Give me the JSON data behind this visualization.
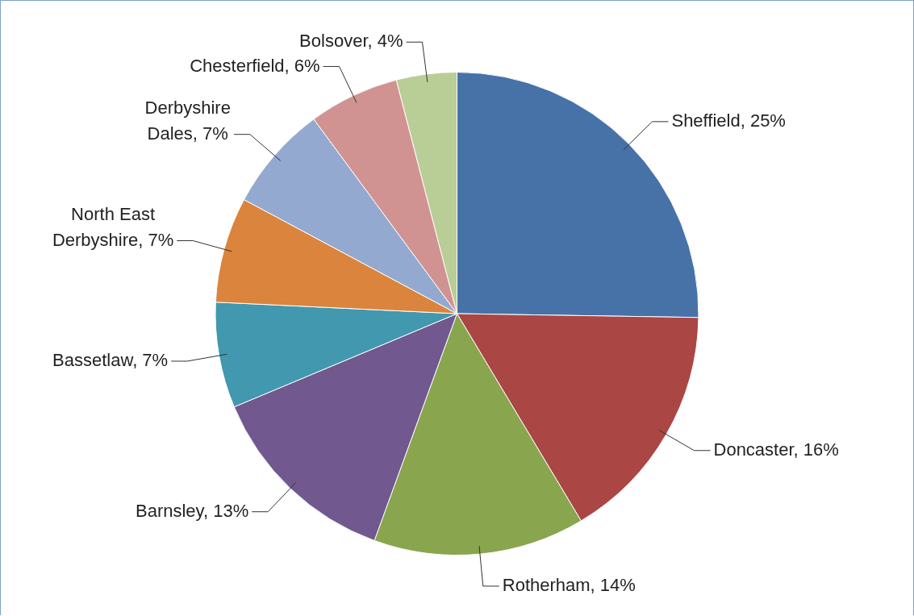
{
  "chart_data": {
    "type": "pie",
    "categories": [
      "Sheffield",
      "Doncaster",
      "Rotherham",
      "Barnsley",
      "Bassetlaw",
      "North East Derbyshire",
      "Derbyshire Dales",
      "Chesterfield",
      "Bolsover"
    ],
    "values": [
      25,
      16,
      14,
      13,
      7,
      7,
      7,
      6,
      4
    ],
    "value_labels": [
      "25%",
      "16%",
      "14%",
      "13%",
      "7%",
      "7%",
      "7%",
      "6%",
      "4%"
    ],
    "colors": [
      "#4672a8",
      "#aa4644",
      "#89a54e",
      "#71588f",
      "#4198af",
      "#db843d",
      "#93a9cf",
      "#d19392",
      "#b9cd96"
    ],
    "legend": false
  }
}
